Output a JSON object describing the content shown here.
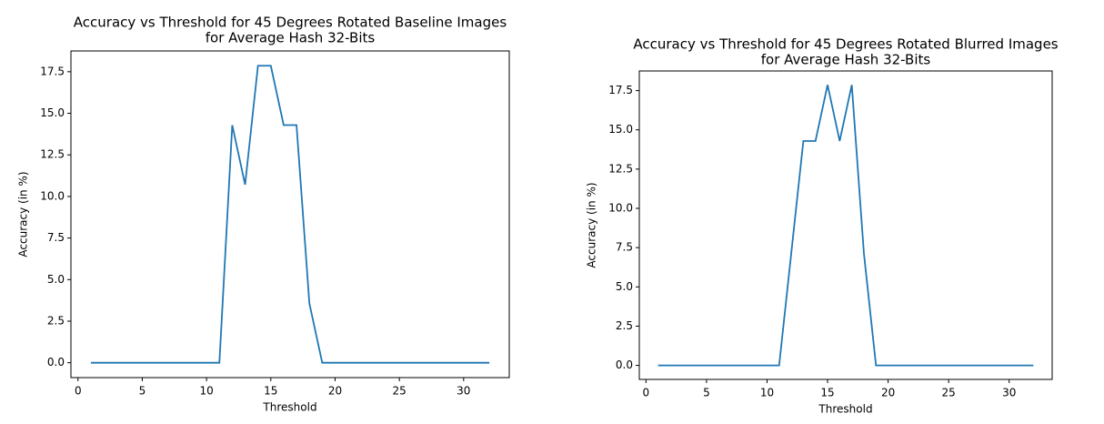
{
  "chart_data": [
    {
      "type": "line",
      "title": [
        "Accuracy vs Threshold for 45 Degrees Rotated Baseline Images",
        "for Average Hash 32-Bits"
      ],
      "xlabel": "Threshold",
      "ylabel": "Accuracy (in %)",
      "x": [
        1,
        2,
        3,
        4,
        5,
        6,
        7,
        8,
        9,
        10,
        11,
        12,
        13,
        14,
        15,
        16,
        17,
        18,
        19,
        20,
        21,
        22,
        23,
        24,
        25,
        26,
        27,
        28,
        29,
        30,
        31,
        32
      ],
      "series": [
        {
          "color": "#1f77b4",
          "values": [
            0,
            0,
            0,
            0,
            0,
            0,
            0,
            0,
            0,
            0,
            0,
            14.29,
            10.71,
            17.86,
            17.86,
            14.29,
            14.29,
            3.57,
            0,
            0,
            0,
            0,
            0,
            0,
            0,
            0,
            0,
            0,
            0,
            0,
            0,
            0
          ]
        }
      ],
      "xlim": [
        -0.55,
        33.55
      ],
      "xticks": [
        0,
        5,
        10,
        15,
        20,
        25,
        30
      ],
      "ylim": [
        -0.893,
        18.75
      ],
      "yticks": [
        {
          "value": 0,
          "label": "0.0"
        },
        2.5,
        {
          "value": 5,
          "label": "5.0"
        },
        7.5,
        {
          "value": 10,
          "label": "10.0"
        },
        12.5,
        {
          "value": 15,
          "label": "15.0"
        },
        17.5
      ]
    },
    {
      "type": "line",
      "title": [
        "Accuracy vs Threshold for 45 Degrees Rotated Blurred Images",
        "for Average Hash 32-Bits"
      ],
      "xlabel": "Threshold",
      "ylabel": "Accuracy (in %)",
      "x": [
        1,
        2,
        3,
        4,
        5,
        6,
        7,
        8,
        9,
        10,
        11,
        12,
        13,
        14,
        15,
        16,
        17,
        18,
        19,
        20,
        21,
        22,
        23,
        24,
        25,
        26,
        27,
        28,
        29,
        30,
        31,
        32
      ],
      "series": [
        {
          "color": "#1f77b4",
          "values": [
            0,
            0,
            0,
            0,
            0,
            0,
            0,
            0,
            0,
            0,
            0,
            7.14,
            14.29,
            14.29,
            17.86,
            14.29,
            17.86,
            7.14,
            0,
            0,
            0,
            0,
            0,
            0,
            0,
            0,
            0,
            0,
            0,
            0,
            0,
            0
          ]
        }
      ],
      "xlim": [
        -0.55,
        33.55
      ],
      "xticks": [
        0,
        5,
        10,
        15,
        20,
        25,
        30
      ],
      "ylim": [
        -0.893,
        18.75
      ],
      "yticks": [
        {
          "value": 0,
          "label": "0.0"
        },
        2.5,
        {
          "value": 5,
          "label": "5.0"
        },
        7.5,
        {
          "value": 10,
          "label": "10.0"
        },
        12.5,
        {
          "value": 15,
          "label": "15.0"
        },
        17.5
      ]
    }
  ]
}
